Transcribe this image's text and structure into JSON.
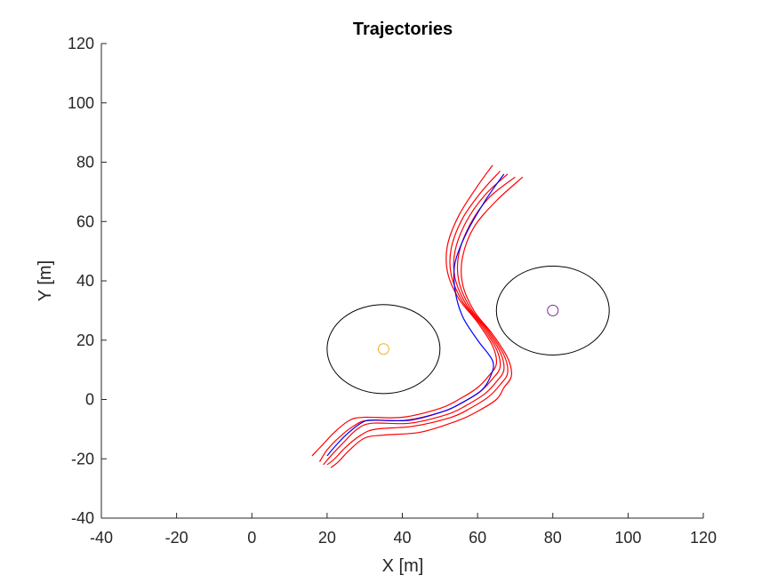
{
  "chart_data": {
    "type": "line",
    "title": "Trajectories",
    "xlabel": "X [m]",
    "ylabel": "Y [m]",
    "xlim": [
      -40,
      120
    ],
    "ylim": [
      -40,
      120
    ],
    "xticks": [
      -40,
      -20,
      0,
      20,
      40,
      60,
      80,
      100,
      120
    ],
    "yticks": [
      -40,
      -20,
      0,
      20,
      40,
      60,
      80,
      100,
      120
    ],
    "grid": false,
    "colors": {
      "axis": "#262626",
      "trajectory": "#ff0000",
      "reference": "#0000ff",
      "obstacle_boundary": "#000000",
      "obstacle_1_center": "#edb120",
      "obstacle_2_center": "#7e2f8e"
    },
    "obstacles": [
      {
        "center": [
          35,
          17
        ],
        "radius_x": 15,
        "radius_y": 15
      },
      {
        "center": [
          80,
          30
        ],
        "radius_x": 15,
        "radius_y": 15
      }
    ],
    "series": [
      {
        "color": "#ff0000",
        "x": [
          16,
          19,
          22,
          26,
          30,
          40,
          50,
          55,
          60,
          63,
          65,
          64,
          60,
          55,
          52,
          52,
          55,
          60,
          64
        ],
        "y": [
          -19,
          -15,
          -11,
          -7,
          -6,
          -6,
          -3,
          0,
          4,
          8,
          12,
          18,
          26,
          34,
          43,
          52,
          62,
          72,
          79
        ]
      },
      {
        "color": "#ff0000",
        "x": [
          18,
          20,
          23,
          27,
          31,
          41,
          51,
          56,
          61,
          64,
          66,
          65,
          61,
          56,
          53,
          53,
          56,
          61,
          66
        ],
        "y": [
          -21,
          -17,
          -13,
          -9,
          -7,
          -7,
          -4,
          -1,
          3,
          7,
          11,
          17,
          25,
          33,
          42,
          51,
          61,
          70,
          77
        ]
      },
      {
        "color": "#ff0000",
        "x": [
          19,
          21,
          24,
          28,
          32,
          42,
          52,
          57,
          62,
          65,
          67,
          66,
          62,
          57,
          54,
          54,
          57,
          62,
          68
        ],
        "y": [
          -22,
          -19,
          -15,
          -10,
          -8,
          -8,
          -5,
          -2,
          2,
          6,
          10,
          16,
          24,
          32,
          41,
          50,
          60,
          69,
          76
        ]
      },
      {
        "color": "#ff0000",
        "x": [
          20,
          22,
          25,
          29,
          33,
          43,
          53,
          58,
          63,
          66,
          68,
          67,
          63,
          58,
          55,
          55,
          58,
          63,
          70
        ],
        "y": [
          -22,
          -20,
          -16,
          -12,
          -10,
          -9,
          -6,
          -3,
          1,
          5,
          9,
          15,
          23,
          31,
          40,
          49,
          59,
          68,
          75
        ]
      },
      {
        "color": "#ff0000",
        "x": [
          21,
          23,
          26,
          30,
          35,
          45,
          55,
          60,
          65,
          67,
          69,
          68,
          64,
          59,
          56,
          56,
          59,
          65,
          72
        ],
        "y": [
          -23,
          -21,
          -17,
          -13,
          -12,
          -11,
          -7,
          -4,
          0,
          4,
          8,
          14,
          22,
          30,
          39,
          48,
          58,
          67,
          75
        ]
      },
      {
        "color": "#0000ff",
        "x": [
          20,
          22,
          25,
          29,
          32,
          42,
          51,
          56,
          61,
          63.5,
          64,
          60,
          56,
          54,
          54,
          57,
          62,
          67
        ],
        "y": [
          -19,
          -16,
          -12,
          -8,
          -7,
          -7,
          -4,
          -1,
          3,
          8,
          13,
          20,
          28,
          37,
          46,
          56,
          67,
          76
        ]
      }
    ]
  }
}
